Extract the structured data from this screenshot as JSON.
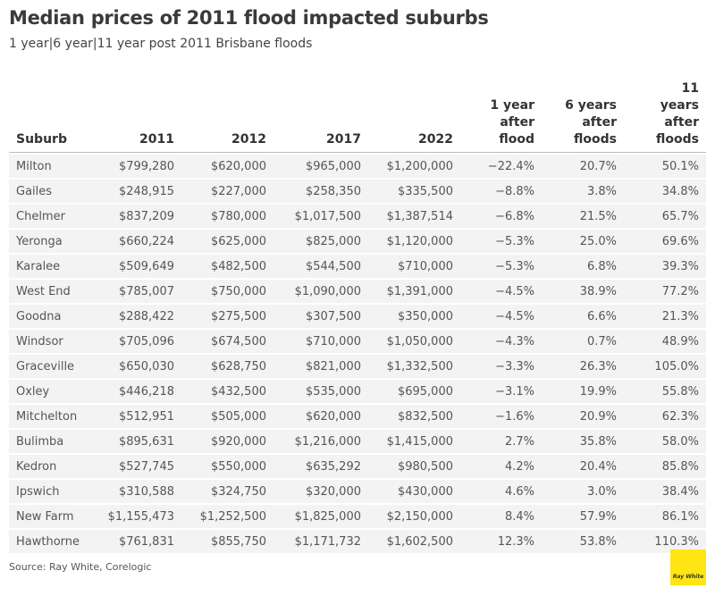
{
  "header": {
    "title": "Median prices of 2011 flood impacted suburbs",
    "subtitle": "1 year|6 year|11 year post 2011 Brisbane floods"
  },
  "table": {
    "columns": [
      "Suburb",
      "2011",
      "2012",
      "2017",
      "2022",
      "1 year after flood",
      "6 years after floods",
      "11 years after floods"
    ],
    "rows": [
      [
        "Milton",
        "$799,280",
        "$620,000",
        "$965,000",
        "$1,200,000",
        "−22.4%",
        "20.7%",
        "50.1%"
      ],
      [
        "Gailes",
        "$248,915",
        "$227,000",
        "$258,350",
        "$335,500",
        "−8.8%",
        "3.8%",
        "34.8%"
      ],
      [
        "Chelmer",
        "$837,209",
        "$780,000",
        "$1,017,500",
        "$1,387,514",
        "−6.8%",
        "21.5%",
        "65.7%"
      ],
      [
        "Yeronga",
        "$660,224",
        "$625,000",
        "$825,000",
        "$1,120,000",
        "−5.3%",
        "25.0%",
        "69.6%"
      ],
      [
        "Karalee",
        "$509,649",
        "$482,500",
        "$544,500",
        "$710,000",
        "−5.3%",
        "6.8%",
        "39.3%"
      ],
      [
        "West End",
        "$785,007",
        "$750,000",
        "$1,090,000",
        "$1,391,000",
        "−4.5%",
        "38.9%",
        "77.2%"
      ],
      [
        "Goodna",
        "$288,422",
        "$275,500",
        "$307,500",
        "$350,000",
        "−4.5%",
        "6.6%",
        "21.3%"
      ],
      [
        "Windsor",
        "$705,096",
        "$674,500",
        "$710,000",
        "$1,050,000",
        "−4.3%",
        "0.7%",
        "48.9%"
      ],
      [
        "Graceville",
        "$650,030",
        "$628,750",
        "$821,000",
        "$1,332,500",
        "−3.3%",
        "26.3%",
        "105.0%"
      ],
      [
        "Oxley",
        "$446,218",
        "$432,500",
        "$535,000",
        "$695,000",
        "−3.1%",
        "19.9%",
        "55.8%"
      ],
      [
        "Mitchelton",
        "$512,951",
        "$505,000",
        "$620,000",
        "$832,500",
        "−1.6%",
        "20.9%",
        "62.3%"
      ],
      [
        "Bulimba",
        "$895,631",
        "$920,000",
        "$1,216,000",
        "$1,415,000",
        "2.7%",
        "35.8%",
        "58.0%"
      ],
      [
        "Kedron",
        "$527,745",
        "$550,000",
        "$635,292",
        "$980,500",
        "4.2%",
        "20.4%",
        "85.8%"
      ],
      [
        "Ipswich",
        "$310,588",
        "$324,750",
        "$320,000",
        "$430,000",
        "4.6%",
        "3.0%",
        "38.4%"
      ],
      [
        "New Farm",
        "$1,155,473",
        "$1,252,500",
        "$1,825,000",
        "$2,150,000",
        "8.4%",
        "57.9%",
        "86.1%"
      ],
      [
        "Hawthorne",
        "$761,831",
        "$855,750",
        "$1,171,732",
        "$1,602,500",
        "12.3%",
        "53.8%",
        "110.3%"
      ]
    ]
  },
  "footer": {
    "source": "Source: Ray White, Corelogic",
    "logo": "Ray White"
  }
}
